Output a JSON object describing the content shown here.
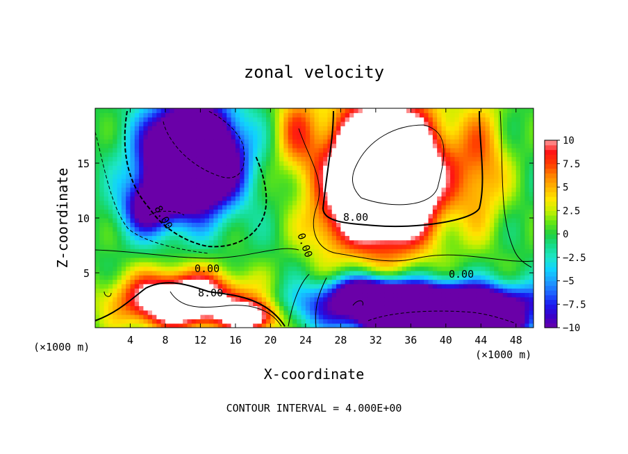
{
  "chart_data": {
    "type": "heatmap",
    "title": "zonal velocity",
    "xlabel": "X-coordinate",
    "ylabel": "Z-coordinate",
    "x_unit_left": "(×1000 m)",
    "x_unit_right": "(×1000 m)",
    "xlim": [
      0,
      50
    ],
    "ylim": [
      0,
      20
    ],
    "x_ticks": [
      "4",
      "8",
      "12",
      "16",
      "20",
      "24",
      "28",
      "32",
      "36",
      "40",
      "44",
      "48"
    ],
    "y_ticks": [
      "5",
      "10",
      "15"
    ],
    "footer": "CONTOUR INTERVAL = 4.000E+00",
    "colorbar": {
      "min": -10,
      "max": 10,
      "labels": [
        "10",
        "7.5",
        "5",
        "2.5",
        "0",
        "−2.5",
        "−5",
        "−7.5",
        "−10"
      ]
    },
    "contour_labels": [
      "8.00",
      "8.00",
      "0.00",
      "0.00",
      "0.00",
      "8.00"
    ],
    "colors": {
      "high": "#ff0000",
      "low": "#6a00a8",
      "saturated_high": "#ffffff"
    }
  }
}
